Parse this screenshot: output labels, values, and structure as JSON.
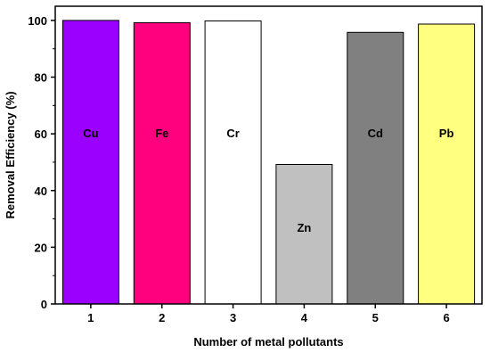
{
  "chart_data": {
    "type": "bar",
    "categories": [
      "1",
      "2",
      "3",
      "4",
      "5",
      "6"
    ],
    "values": [
      100,
      99.2,
      99.8,
      49.2,
      95.8,
      98.7
    ],
    "bar_labels": [
      "Cu",
      "Fe",
      "Cr",
      "Zn",
      "Cd",
      "Pb"
    ],
    "bar_colors": [
      "#9b00ff",
      "#ff007f",
      "#ffffff",
      "#c0c0c0",
      "#808080",
      "#ffff80"
    ],
    "xlabel": "Number of metal pollutants",
    "ylabel": "Removal Efficiency (%)",
    "ylim": [
      0,
      105
    ],
    "yticks": [
      0,
      20,
      40,
      60,
      80,
      100
    ],
    "grid": false
  }
}
